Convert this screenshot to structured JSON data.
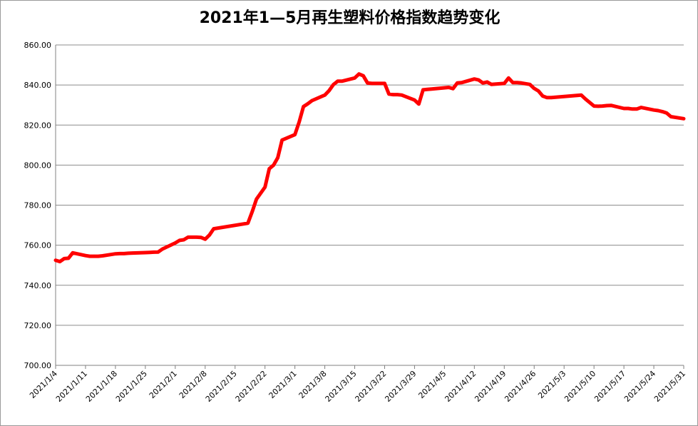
{
  "chart_data": {
    "type": "line",
    "title": "2021年1—5月再生塑料价格指数趋势变化",
    "xlabel": "",
    "ylabel": "",
    "ylim": [
      700,
      860
    ],
    "y_ticks": [
      "860.00",
      "840.00",
      "820.00",
      "800.00",
      "780.00",
      "760.00",
      "740.00",
      "720.00",
      "700.00"
    ],
    "x_ticks": [
      "2021/1/4",
      "2021/1/11",
      "2021/1/18",
      "2021/1/25",
      "2021/2/1",
      "2021/2/8",
      "2021/2/15",
      "2021/2/22",
      "2021/3/1",
      "2021/3/8",
      "2021/3/15",
      "2021/3/22",
      "2021/3/29",
      "2021/4/5",
      "2021/4/12",
      "2021/4/19",
      "2021/4/26",
      "2021/5/3",
      "2021/5/10",
      "2021/5/17",
      "2021/5/24",
      "2021/5/31"
    ],
    "grid": true,
    "legend": "none",
    "line_color": "#ff0000",
    "series": [
      {
        "x": [
          "2021/1/4",
          "2021/1/5",
          "2021/1/6",
          "2021/1/7",
          "2021/1/8",
          "2021/1/11",
          "2021/1/12",
          "2021/1/13",
          "2021/1/14",
          "2021/1/15",
          "2021/1/18",
          "2021/1/19",
          "2021/1/20",
          "2021/1/21",
          "2021/1/22",
          "2021/1/25",
          "2021/1/26",
          "2021/1/27",
          "2021/1/28",
          "2021/1/29",
          "2021/2/1",
          "2021/2/2",
          "2021/2/3",
          "2021/2/4",
          "2021/2/5",
          "2021/2/6",
          "2021/2/7",
          "2021/2/8",
          "2021/2/9",
          "2021/2/10",
          "2021/2/18",
          "2021/2/19",
          "2021/2/20",
          "2021/2/22",
          "2021/2/23",
          "2021/2/24",
          "2021/2/25",
          "2021/2/26",
          "2021/3/1",
          "2021/3/2",
          "2021/3/3",
          "2021/3/4",
          "2021/3/5",
          "2021/3/8",
          "2021/3/9",
          "2021/3/10",
          "2021/3/11",
          "2021/3/12",
          "2021/3/15",
          "2021/3/16",
          "2021/3/17",
          "2021/3/18",
          "2021/3/19",
          "2021/3/22",
          "2021/3/23",
          "2021/3/24",
          "2021/3/25",
          "2021/3/26",
          "2021/3/29",
          "2021/3/30",
          "2021/3/31",
          "2021/4/1",
          "2021/4/2",
          "2021/4/6",
          "2021/4/7",
          "2021/4/8",
          "2021/4/9",
          "2021/4/12",
          "2021/4/13",
          "2021/4/14",
          "2021/4/15",
          "2021/4/16",
          "2021/4/19",
          "2021/4/20",
          "2021/4/21",
          "2021/4/22",
          "2021/4/23",
          "2021/4/25",
          "2021/4/26",
          "2021/4/27",
          "2021/4/28",
          "2021/4/29",
          "2021/4/30",
          "2021/5/6",
          "2021/5/7",
          "2021/5/8",
          "2021/5/10",
          "2021/5/11",
          "2021/5/12",
          "2021/5/13",
          "2021/5/14",
          "2021/5/17",
          "2021/5/18",
          "2021/5/19",
          "2021/5/20",
          "2021/5/21",
          "2021/5/24",
          "2021/5/25",
          "2021/5/26",
          "2021/5/27",
          "2021/5/28",
          "2021/5/31"
        ],
        "values": [
          752.5,
          751.8,
          753.3,
          753.5,
          756.2,
          754.8,
          754.5,
          754.5,
          754.5,
          754.7,
          755.7,
          755.8,
          755.8,
          756.0,
          756.1,
          756.3,
          756.4,
          756.5,
          756.6,
          758.1,
          761.1,
          762.4,
          762.7,
          764.0,
          764.0,
          764.0,
          763.9,
          763.0,
          765.1,
          768.2,
          771.0,
          776.7,
          783.0,
          789.0,
          798.2,
          800.0,
          803.7,
          812.5,
          815.2,
          821.5,
          829.2,
          830.6,
          832.2,
          835.0,
          837.2,
          840.2,
          841.9,
          841.9,
          843.5,
          845.5,
          844.6,
          841.0,
          840.8,
          840.8,
          835.5,
          835.2,
          835.2,
          835.0,
          832.5,
          830.5,
          837.6,
          837.8,
          838.0,
          838.8,
          838.2,
          841.0,
          841.2,
          843.0,
          842.5,
          841.0,
          841.5,
          840.3,
          840.8,
          843.5,
          841.2,
          841.2,
          841.0,
          840.3,
          838.3,
          837.0,
          834.5,
          833.7,
          833.7,
          834.8,
          835.0,
          833.0,
          829.5,
          829.4,
          829.5,
          829.7,
          829.8,
          828.3,
          828.3,
          828.0,
          828.0,
          828.8,
          827.5,
          827.2,
          826.7,
          826.0,
          824.2,
          823.2
        ]
      }
    ]
  }
}
